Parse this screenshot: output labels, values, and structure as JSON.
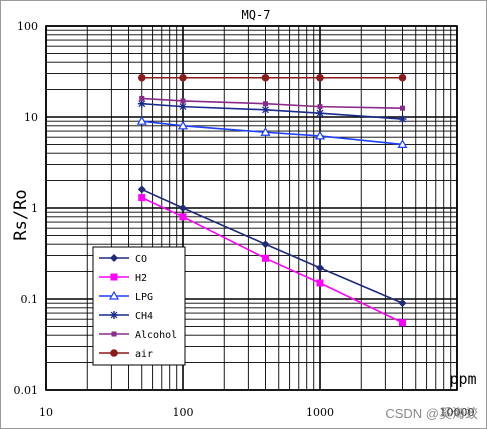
{
  "chart_data": {
    "type": "line",
    "title": "MQ-7",
    "xlabel": "ppm",
    "ylabel": "Rs/Ro",
    "xscale": "log",
    "yscale": "log",
    "xlim": [
      10,
      10000
    ],
    "ylim": [
      0.01,
      100
    ],
    "xticks": [
      "10",
      "100",
      "1000",
      "10000"
    ],
    "yticks": [
      "100",
      "10",
      "1",
      "0.1",
      "0.01"
    ],
    "grid": true,
    "legend_position": "bottom-left",
    "series": [
      {
        "name": "CO",
        "color": "#1f2a7a",
        "marker": "diamond",
        "x": [
          50,
          100,
          400,
          1000,
          4000
        ],
        "y": [
          1.6,
          1.0,
          0.4,
          0.22,
          0.09
        ]
      },
      {
        "name": "H2",
        "color": "#ff00ff",
        "marker": "square",
        "x": [
          50,
          100,
          400,
          1000,
          4000
        ],
        "y": [
          1.3,
          0.8,
          0.28,
          0.15,
          0.055
        ]
      },
      {
        "name": "LPG",
        "color": "#1f3fff",
        "marker": "triangle-open",
        "x": [
          50,
          100,
          400,
          1000,
          4000
        ],
        "y": [
          9.0,
          8.0,
          6.8,
          6.2,
          5.0
        ]
      },
      {
        "name": "CH4",
        "color": "#1a2a8c",
        "marker": "star",
        "x": [
          50,
          100,
          400,
          1000,
          4000
        ],
        "y": [
          14,
          13,
          12,
          11,
          9.5
        ]
      },
      {
        "name": "Alcohol",
        "color": "#8a2a8a",
        "marker": "square-small",
        "x": [
          50,
          100,
          400,
          1000,
          4000
        ],
        "y": [
          16,
          15,
          14,
          13,
          12.5
        ]
      },
      {
        "name": "air",
        "color": "#8b1a1a",
        "marker": "circle",
        "x": [
          50,
          100,
          400,
          1000,
          4000
        ],
        "y": [
          27,
          27,
          27,
          27,
          27
        ]
      }
    ]
  },
  "watermark": "CSDN @奚海蛟"
}
